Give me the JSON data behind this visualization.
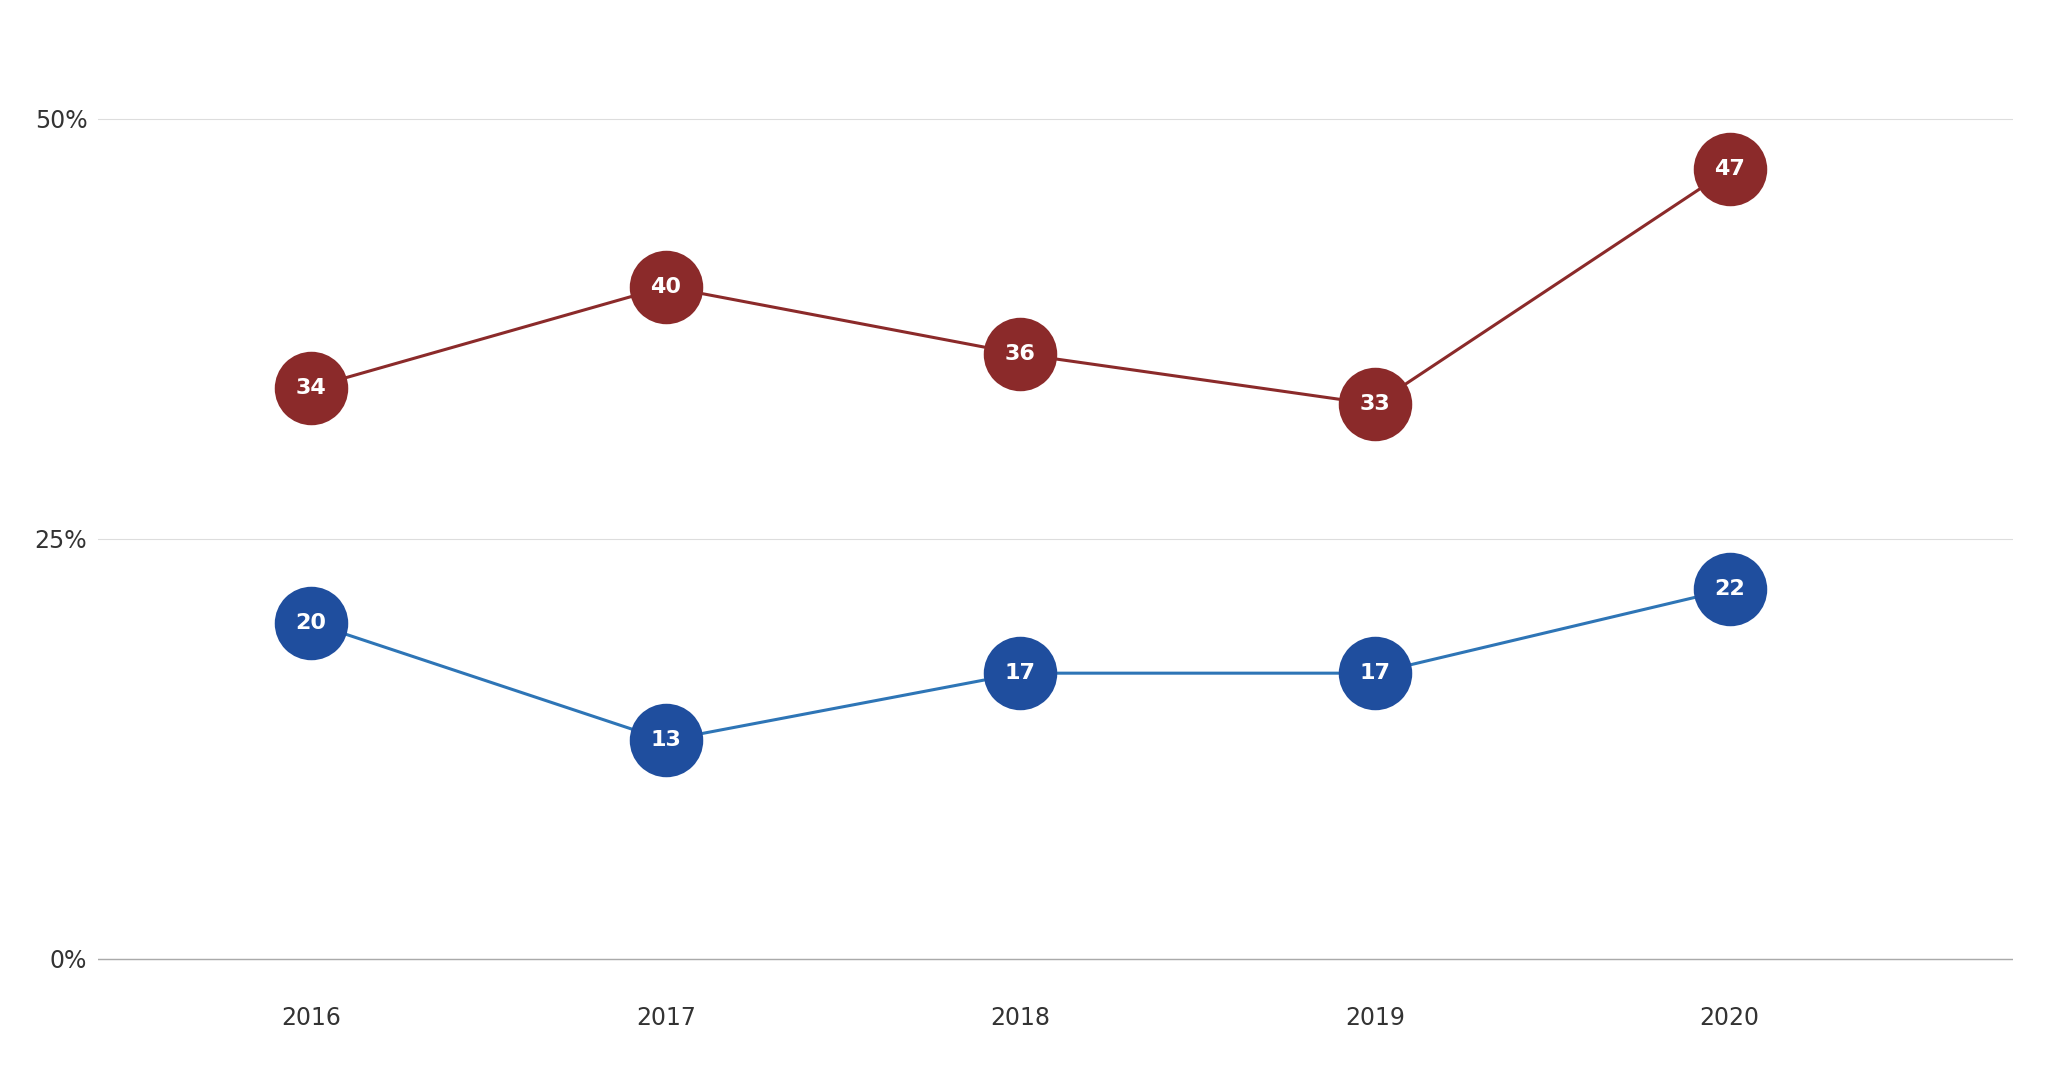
{
  "years": [
    2016,
    2017,
    2018,
    2019,
    2020
  ],
  "red_series": [
    34,
    40,
    36,
    33,
    47
  ],
  "blue_series": [
    20,
    13,
    17,
    17,
    22
  ],
  "red_color": "#8B2A2A",
  "blue_color": "#1F4E9E",
  "red_line_color": "#8B2A2A",
  "blue_line_color": "#2E75B6",
  "background_color": "#FFFFFF",
  "border_color": "#CCCCCC",
  "yticks": [
    0,
    25,
    50
  ],
  "ytick_labels": [
    "0%",
    "25%",
    "50%"
  ],
  "ylim": [
    -2,
    55
  ],
  "xlim": [
    2015.4,
    2020.8
  ],
  "marker_size": 55,
  "font_size_labels": 16,
  "font_size_ticks": 17,
  "line_width": 2.2
}
